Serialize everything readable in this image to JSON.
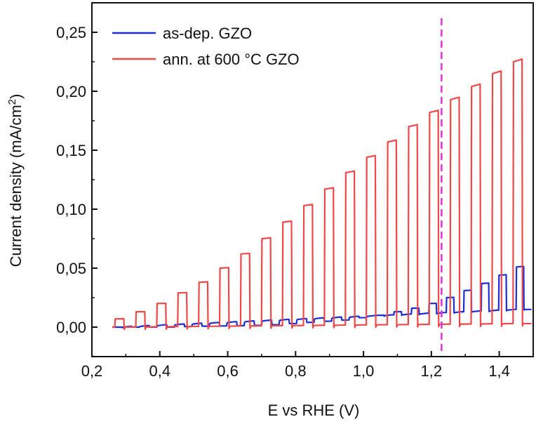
{
  "chart_data": {
    "type": "line",
    "title": "",
    "xlabel": "E vs RHE (V)",
    "ylabel_main": "Current density (mA/cm",
    "ylabel_sup": "2",
    "ylabel_close": ")",
    "xlim": [
      0.2,
      1.5
    ],
    "ylim": [
      -0.025,
      0.275
    ],
    "x_ticks": [
      0.2,
      0.4,
      0.6,
      0.8,
      1.0,
      1.2,
      1.4
    ],
    "x_tick_labels": [
      "0,2",
      "0,4",
      "0,6",
      "0,8",
      "1,0",
      "1,2",
      "1,4"
    ],
    "y_ticks": [
      0.0,
      0.05,
      0.1,
      0.15,
      0.2,
      0.25
    ],
    "y_tick_labels": [
      "0,00",
      "0,05",
      "0,10",
      "0,15",
      "0,20",
      "0,25"
    ],
    "reference_line": {
      "x": 1.23,
      "color": "#dd33dd",
      "style": "dashed"
    },
    "series": [
      {
        "name": "as-dep. GZO",
        "color": "#1a2fd6",
        "x_start": 0.26,
        "x_end": 1.495,
        "chop_period": 0.062,
        "on_currents": [
          0.0,
          0.0,
          0.0,
          0.0,
          0.0005,
          0.0008,
          0.001,
          0.0012,
          0.0015,
          0.002,
          0.003,
          0.004,
          0.005,
          0.006,
          0.008,
          0.01,
          0.013,
          0.016,
          0.02,
          0.025,
          0.031,
          0.037,
          0.044,
          0.051
        ],
        "dark_current_end": 0.015
      },
      {
        "name": "ann. at 600 °C GZO",
        "color": "#f04848",
        "x_start": 0.26,
        "x_end": 1.495,
        "chop_period": 0.062,
        "on_currents": [
          0.007,
          0.013,
          0.02,
          0.029,
          0.038,
          0.05,
          0.062,
          0.075,
          0.089,
          0.103,
          0.117,
          0.131,
          0.144,
          0.157,
          0.17,
          0.182,
          0.193,
          0.204,
          0.215,
          0.225
        ],
        "dark_current_end": 0.003
      }
    ],
    "legend_position": "top-left"
  }
}
